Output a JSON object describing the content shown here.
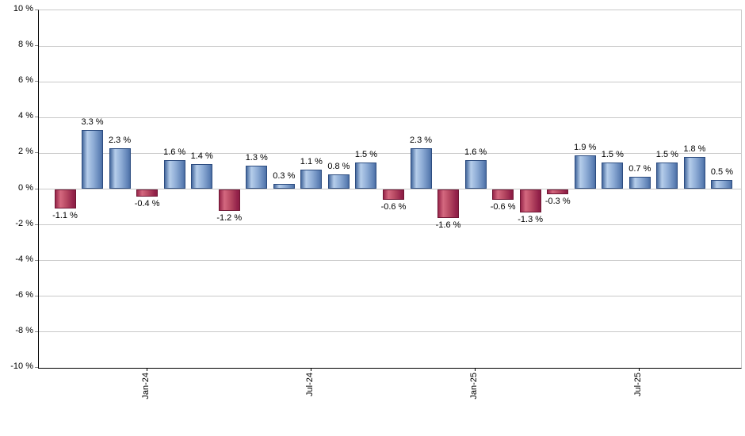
{
  "chart_data": {
    "type": "bar",
    "title": "",
    "xlabel": "",
    "ylabel": "",
    "values": [
      -1.1,
      3.3,
      2.3,
      -0.4,
      1.6,
      1.4,
      -1.2,
      1.3,
      0.3,
      1.1,
      0.8,
      1.5,
      -0.6,
      2.3,
      -1.6,
      1.6,
      -0.6,
      -1.3,
      -0.3,
      1.9,
      1.5,
      0.7,
      1.5,
      1.8,
      0.5
    ],
    "value_label_suffix": " %",
    "x_ticks": [
      {
        "index": 3,
        "label": "Jan-24"
      },
      {
        "index": 9,
        "label": "Jul-24"
      },
      {
        "index": 15,
        "label": "Jan-25"
      },
      {
        "index": 21,
        "label": "Jul-25"
      }
    ],
    "ylim": [
      -10,
      10
    ],
    "ytick_step": 2,
    "ytick_suffix": " %",
    "grid": true,
    "legend": false,
    "colors": {
      "positive": "#6d94c9",
      "positive_highlight": "#b5cdea",
      "positive_border": "#2c4c80",
      "negative": "#b84a63",
      "negative_highlight": "#d4687f",
      "negative_border": "#6f1634",
      "gridline": "#c9c9c9",
      "axis": "#000000",
      "background": "#ffffff"
    }
  }
}
